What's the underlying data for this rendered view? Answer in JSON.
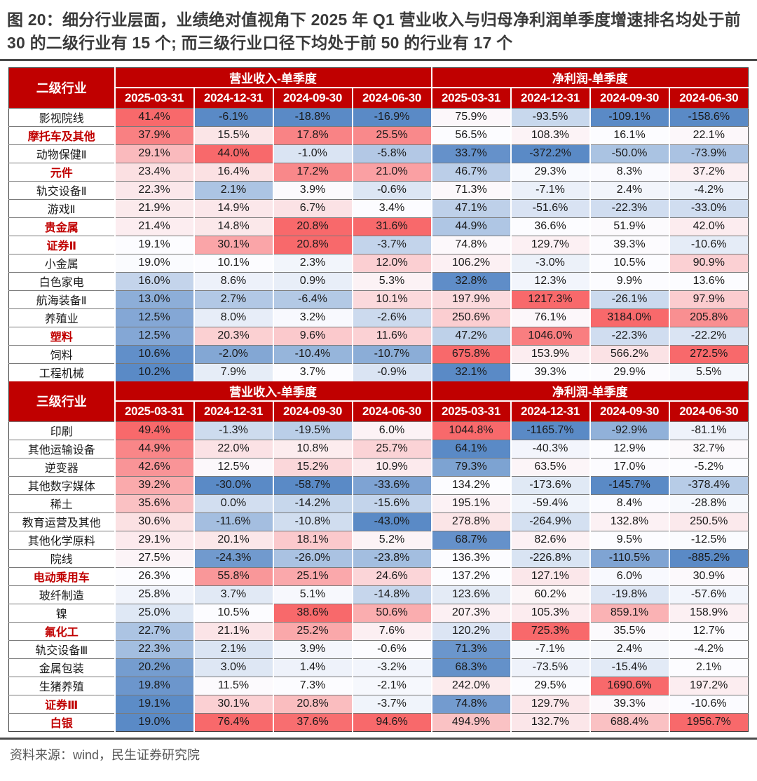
{
  "title": "图 20：细分行业层面，业绩绝对值视角下 2025 年 Q1 营业收入与归母净利润单季度增速排名均处于前 30 的二级行业有 15 个; 而三级行业口径下均处于前 50 的行业有 17 个",
  "source": "资料来源：wind，民生证券研究院",
  "colors": {
    "header_bg": "#C00000",
    "header_text": "#FFFFFF",
    "highlight_label": "#C00000",
    "heatmap_min_blue": "#5A8AC6",
    "heatmap_mid_white": "#FCFCFF",
    "heatmap_max_red": "#F8696B",
    "divider": "#4A4A4A"
  },
  "table": {
    "sections": [
      {
        "label_header": "二级行业",
        "group_headers": [
          "营业收入-单季度",
          "净利润-单季度"
        ],
        "date_headers": [
          "2025-03-31",
          "2024-12-31",
          "2024-09-30",
          "2024-06-30"
        ],
        "rows": [
          {
            "name": "影视院线",
            "highlight": false,
            "revenue": [
              41.4,
              -6.1,
              -18.8,
              -16.9
            ],
            "net_profit": [
              75.9,
              -93.5,
              -109.1,
              -158.6
            ]
          },
          {
            "name": "摩托车及其他",
            "highlight": true,
            "revenue": [
              37.9,
              15.5,
              17.8,
              25.5
            ],
            "net_profit": [
              56.5,
              108.3,
              16.1,
              22.1
            ]
          },
          {
            "name": "动物保健Ⅱ",
            "highlight": false,
            "revenue": [
              29.1,
              44.0,
              -1.0,
              -5.8
            ],
            "net_profit": [
              33.7,
              -372.2,
              -50.0,
              -73.9
            ]
          },
          {
            "name": "元件",
            "highlight": true,
            "revenue": [
              23.4,
              16.4,
              17.2,
              21.0
            ],
            "net_profit": [
              46.7,
              29.3,
              8.3,
              37.2
            ]
          },
          {
            "name": "轨交设备Ⅱ",
            "highlight": false,
            "revenue": [
              22.3,
              2.1,
              3.9,
              -0.6
            ],
            "net_profit": [
              71.3,
              -7.1,
              2.4,
              -4.2
            ]
          },
          {
            "name": "游戏Ⅱ",
            "highlight": false,
            "revenue": [
              21.9,
              14.9,
              6.7,
              3.4
            ],
            "net_profit": [
              47.1,
              -51.6,
              -22.3,
              -33.0
            ]
          },
          {
            "name": "贵金属",
            "highlight": true,
            "revenue": [
              21.4,
              14.8,
              20.8,
              31.6
            ],
            "net_profit": [
              44.9,
              36.6,
              51.9,
              42.0
            ]
          },
          {
            "name": "证券Ⅱ",
            "highlight": true,
            "revenue": [
              19.1,
              30.1,
              20.8,
              -3.7
            ],
            "net_profit": [
              74.8,
              129.7,
              39.3,
              -10.6
            ]
          },
          {
            "name": "小金属",
            "highlight": false,
            "revenue": [
              19.0,
              10.1,
              2.3,
              12.0
            ],
            "net_profit": [
              106.2,
              -3.0,
              10.5,
              90.9
            ]
          },
          {
            "name": "白色家电",
            "highlight": false,
            "revenue": [
              16.0,
              8.6,
              0.9,
              5.3
            ],
            "net_profit": [
              32.8,
              12.3,
              9.9,
              13.6
            ]
          },
          {
            "name": "航海装备Ⅱ",
            "highlight": false,
            "revenue": [
              13.0,
              2.7,
              -6.4,
              10.1
            ],
            "net_profit": [
              197.9,
              1217.3,
              -26.1,
              97.9
            ]
          },
          {
            "name": "养殖业",
            "highlight": false,
            "revenue": [
              12.5,
              8.0,
              3.2,
              -2.6
            ],
            "net_profit": [
              250.6,
              76.1,
              3184.0,
              205.8
            ]
          },
          {
            "name": "塑料",
            "highlight": true,
            "revenue": [
              12.5,
              20.3,
              9.6,
              11.6
            ],
            "net_profit": [
              47.2,
              1046.0,
              -22.3,
              -22.2
            ]
          },
          {
            "name": "饲料",
            "highlight": false,
            "revenue": [
              10.6,
              -2.0,
              -10.4,
              -10.7
            ],
            "net_profit": [
              675.8,
              153.9,
              566.2,
              272.5
            ]
          },
          {
            "name": "工程机械",
            "highlight": false,
            "revenue": [
              10.2,
              7.9,
              3.7,
              -0.9
            ],
            "net_profit": [
              32.1,
              39.3,
              29.9,
              5.5
            ]
          }
        ]
      },
      {
        "label_header": "三级行业",
        "group_headers": [
          "营业收入-单季度",
          "净利润-单季度"
        ],
        "date_headers": [
          "2025-03-31",
          "2024-12-31",
          "2024-09-30",
          "2024-06-30"
        ],
        "rows": [
          {
            "name": "印刷",
            "highlight": false,
            "revenue": [
              49.4,
              -1.3,
              -19.5,
              6.0
            ],
            "net_profit": [
              1044.8,
              -1165.7,
              -92.9,
              -81.1
            ]
          },
          {
            "name": "其他运输设备",
            "highlight": false,
            "revenue": [
              44.9,
              22.0,
              10.8,
              25.7
            ],
            "net_profit": [
              64.1,
              -40.3,
              12.9,
              32.7
            ]
          },
          {
            "name": "逆变器",
            "highlight": false,
            "revenue": [
              42.6,
              12.5,
              15.2,
              10.9
            ],
            "net_profit": [
              79.3,
              63.5,
              17.0,
              -5.2
            ]
          },
          {
            "name": "其他数字媒体",
            "highlight": false,
            "revenue": [
              39.2,
              -30.0,
              -58.7,
              -33.6
            ],
            "net_profit": [
              134.2,
              -173.6,
              -145.7,
              -378.4
            ]
          },
          {
            "name": "稀土",
            "highlight": false,
            "revenue": [
              35.6,
              0.0,
              -14.2,
              -15.6
            ],
            "net_profit": [
              195.1,
              -59.4,
              8.4,
              -28.8
            ]
          },
          {
            "name": "教育运营及其他",
            "highlight": false,
            "revenue": [
              30.6,
              -11.6,
              -10.8,
              -43.0
            ],
            "net_profit": [
              278.8,
              -264.9,
              132.8,
              250.5
            ]
          },
          {
            "name": "其他化学原料",
            "highlight": false,
            "revenue": [
              29.1,
              20.1,
              18.1,
              5.2
            ],
            "net_profit": [
              68.7,
              82.6,
              9.5,
              -12.5
            ]
          },
          {
            "name": "院线",
            "highlight": false,
            "revenue": [
              27.5,
              -24.3,
              -26.0,
              -23.8
            ],
            "net_profit": [
              136.3,
              -226.8,
              -110.5,
              -885.2
            ]
          },
          {
            "name": "电动乘用车",
            "highlight": true,
            "revenue": [
              26.3,
              55.8,
              25.1,
              24.6
            ],
            "net_profit": [
              137.2,
              127.1,
              6.0,
              30.9
            ]
          },
          {
            "name": "玻纤制造",
            "highlight": false,
            "revenue": [
              25.8,
              3.7,
              5.1,
              -14.8
            ],
            "net_profit": [
              123.6,
              60.2,
              -19.8,
              -57.6
            ]
          },
          {
            "name": "镍",
            "highlight": false,
            "revenue": [
              25.0,
              10.5,
              38.6,
              50.6
            ],
            "net_profit": [
              207.3,
              105.3,
              859.1,
              158.9
            ]
          },
          {
            "name": "氟化工",
            "highlight": true,
            "revenue": [
              22.7,
              21.1,
              25.2,
              7.6
            ],
            "net_profit": [
              120.2,
              725.3,
              35.5,
              12.7
            ]
          },
          {
            "name": "轨交设备Ⅲ",
            "highlight": false,
            "revenue": [
              22.3,
              2.1,
              3.9,
              -0.6
            ],
            "net_profit": [
              71.3,
              -7.1,
              2.4,
              -4.2
            ]
          },
          {
            "name": "金属包装",
            "highlight": false,
            "revenue": [
              20.2,
              3.0,
              1.4,
              -3.2
            ],
            "net_profit": [
              68.3,
              -73.5,
              -15.4,
              2.1
            ]
          },
          {
            "name": "生猪养殖",
            "highlight": false,
            "revenue": [
              19.8,
              11.5,
              7.3,
              -2.1
            ],
            "net_profit": [
              242.0,
              29.5,
              1690.6,
              197.2
            ]
          },
          {
            "name": "证券Ⅲ",
            "highlight": true,
            "revenue": [
              19.1,
              30.1,
              20.8,
              -3.7
            ],
            "net_profit": [
              74.8,
              129.7,
              39.3,
              -10.6
            ]
          },
          {
            "name": "白银",
            "highlight": true,
            "revenue": [
              19.0,
              76.4,
              37.6,
              94.6
            ],
            "net_profit": [
              494.9,
              132.7,
              688.4,
              1956.7
            ]
          }
        ]
      }
    ]
  }
}
